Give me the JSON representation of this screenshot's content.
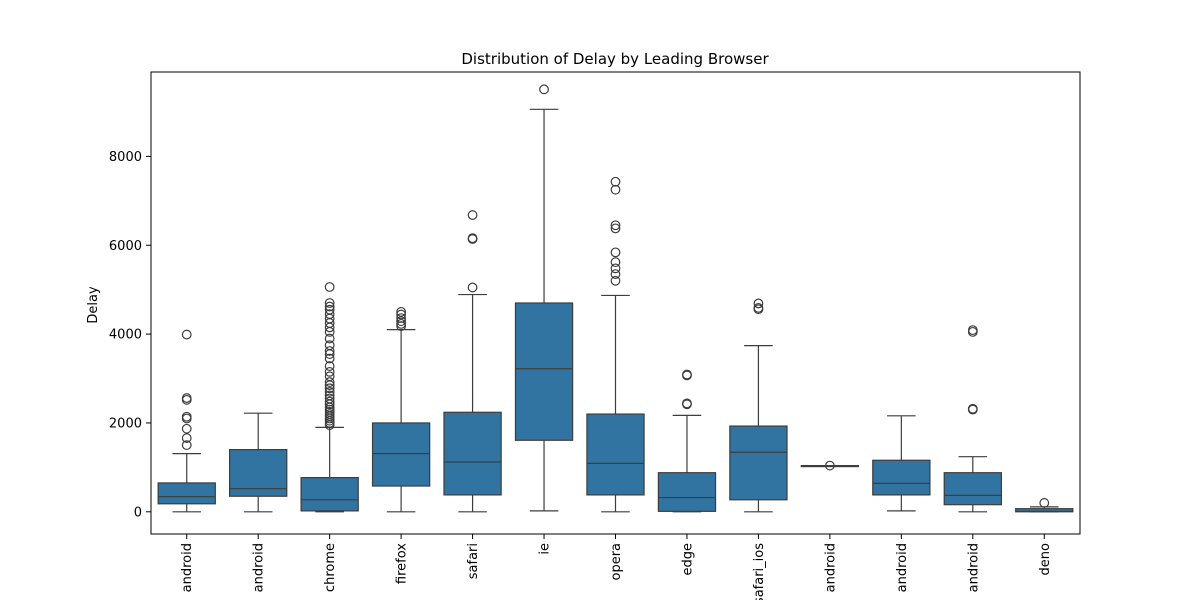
{
  "chart_data": {
    "type": "box",
    "title": "Distribution of Delay by Leading Browser",
    "xlabel": "",
    "ylabel": "Delay",
    "ylim": [
      -500,
      9900
    ],
    "yticks": [
      0,
      2000,
      4000,
      6000,
      8000
    ],
    "ytick_labels": [
      "0",
      "2000",
      "4000",
      "6000",
      "8000"
    ],
    "box_color": "#3274a1",
    "line_color": "#3d3d3d",
    "grid": false,
    "legend": "none",
    "categories": [
      "android",
      "android",
      "chrome",
      "firefox",
      "safari",
      "ie",
      "opera",
      "edge",
      "safari_ios",
      "android",
      "android",
      "android",
      "deno"
    ],
    "boxes": [
      {
        "whislo": 0,
        "q1": 180,
        "med": 340,
        "q3": 650,
        "whishi": 1310,
        "fliers": [
          1500,
          1660,
          1870,
          2100,
          2140,
          2520,
          2560,
          3990
        ]
      },
      {
        "whislo": 0,
        "q1": 350,
        "med": 520,
        "q3": 1400,
        "whishi": 2220,
        "fliers": []
      },
      {
        "whislo": 0,
        "q1": 20,
        "med": 270,
        "q3": 770,
        "whishi": 1900,
        "fliers": [
          1950,
          2000,
          2050,
          2100,
          2150,
          2200,
          2250,
          2300,
          2350,
          2420,
          2480,
          2550,
          2620,
          2700,
          2780,
          2850,
          2920,
          3050,
          3150,
          3280,
          3450,
          3550,
          3620,
          3750,
          3900,
          4050,
          4150,
          4250,
          4350,
          4450,
          4550,
          4620,
          4700,
          5060
        ]
      },
      {
        "whislo": 0,
        "q1": 580,
        "med": 1310,
        "q3": 2000,
        "whishi": 4100,
        "fliers": [
          4180,
          4230,
          4290,
          4360,
          4440,
          4500
        ]
      },
      {
        "whislo": 0,
        "q1": 380,
        "med": 1120,
        "q3": 2240,
        "whishi": 4890,
        "fliers": [
          5050,
          6140,
          6160,
          6680
        ]
      },
      {
        "whislo": 20,
        "q1": 1610,
        "med": 3220,
        "q3": 4700,
        "whishi": 9060,
        "fliers": [
          9510
        ]
      },
      {
        "whislo": 0,
        "q1": 380,
        "med": 1090,
        "q3": 2200,
        "whishi": 4870,
        "fliers": [
          5200,
          5350,
          5480,
          5620,
          5840,
          6380,
          6450,
          7250,
          7430
        ]
      },
      {
        "whislo": 0,
        "q1": 10,
        "med": 320,
        "q3": 880,
        "whishi": 2170,
        "fliers": [
          2420,
          2440,
          3070,
          3090
        ]
      },
      {
        "whislo": 0,
        "q1": 270,
        "med": 1340,
        "q3": 1930,
        "whishi": 3740,
        "fliers": [
          4560,
          4590,
          4690
        ]
      },
      {
        "whislo": 1040,
        "q1": 1040,
        "med": 1040,
        "q3": 1040,
        "whishi": 1040,
        "fliers": [
          1040
        ]
      },
      {
        "whislo": 20,
        "q1": 380,
        "med": 640,
        "q3": 1160,
        "whishi": 2160,
        "fliers": []
      },
      {
        "whislo": 0,
        "q1": 160,
        "med": 370,
        "q3": 880,
        "whishi": 1240,
        "fliers": [
          2300,
          2320,
          4050,
          4090
        ]
      },
      {
        "whislo": 0,
        "q1": 0,
        "med": 10,
        "q3": 70,
        "whishi": 110,
        "fliers": [
          200
        ]
      }
    ]
  }
}
